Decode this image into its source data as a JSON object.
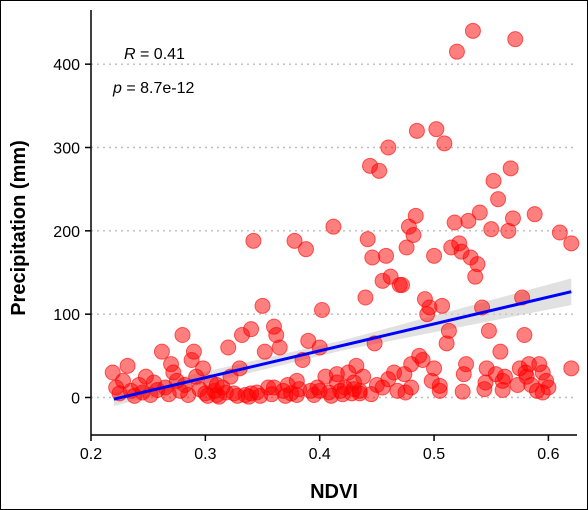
{
  "chart_data": {
    "type": "scatter",
    "title": "",
    "xlabel": "NDVI",
    "ylabel": "Precipitation (mm)",
    "xlim": [
      0.2,
      0.625
    ],
    "ylim": [
      -45,
      465
    ],
    "xticks": [
      "0.2",
      "0.3",
      "0.4",
      "0.5",
      "0.6"
    ],
    "xtick_values": [
      0.2,
      0.3,
      0.4,
      0.5,
      0.6
    ],
    "yticks": [
      "0",
      "100",
      "200",
      "300",
      "400"
    ],
    "ytick_values": [
      0,
      100,
      200,
      300,
      400
    ],
    "grid": "horizontal dotted at y ticks",
    "annotations": {
      "r_symbol": "R",
      "r_text": " = 0.41",
      "p_symbol": "p",
      "p_text": " = 8.7e-12"
    },
    "colors": {
      "points": "#ff0000",
      "regression_line": "#0000ff",
      "confidence_band": "#c8c8c8",
      "grid": "#bdbdbd"
    },
    "regression": {
      "x": [
        0.22,
        0.62
      ],
      "y": [
        -2,
        127
      ],
      "ci_halfwidth_start": 8,
      "ci_halfwidth_end": 16
    },
    "points": [
      [
        0.219,
        30
      ],
      [
        0.222,
        12
      ],
      [
        0.225,
        5
      ],
      [
        0.228,
        20
      ],
      [
        0.232,
        38
      ],
      [
        0.235,
        8
      ],
      [
        0.238,
        2
      ],
      [
        0.242,
        15
      ],
      [
        0.245,
        6
      ],
      [
        0.248,
        25
      ],
      [
        0.252,
        3
      ],
      [
        0.255,
        18
      ],
      [
        0.258,
        9
      ],
      [
        0.262,
        55
      ],
      [
        0.265,
        12
      ],
      [
        0.268,
        4
      ],
      [
        0.27,
        40
      ],
      [
        0.272,
        30
      ],
      [
        0.275,
        20
      ],
      [
        0.278,
        8
      ],
      [
        0.28,
        75
      ],
      [
        0.282,
        15
      ],
      [
        0.285,
        3
      ],
      [
        0.288,
        45
      ],
      [
        0.29,
        55
      ],
      [
        0.292,
        25
      ],
      [
        0.295,
        10
      ],
      [
        0.298,
        35
      ],
      [
        0.3,
        5
      ],
      [
        0.302,
        2
      ],
      [
        0.305,
        18
      ],
      [
        0.308,
        8
      ],
      [
        0.31,
        3
      ],
      [
        0.312,
        1
      ],
      [
        0.315,
        12
      ],
      [
        0.318,
        6
      ],
      [
        0.32,
        60
      ],
      [
        0.322,
        25
      ],
      [
        0.325,
        5
      ],
      [
        0.328,
        2
      ],
      [
        0.33,
        35
      ],
      [
        0.332,
        75
      ],
      [
        0.335,
        3
      ],
      [
        0.338,
        1
      ],
      [
        0.34,
        82
      ],
      [
        0.342,
        188
      ],
      [
        0.345,
        6
      ],
      [
        0.348,
        2
      ],
      [
        0.35,
        110
      ],
      [
        0.352,
        55
      ],
      [
        0.355,
        12
      ],
      [
        0.358,
        4
      ],
      [
        0.36,
        85
      ],
      [
        0.362,
        75
      ],
      [
        0.365,
        60
      ],
      [
        0.368,
        8
      ],
      [
        0.37,
        2
      ],
      [
        0.372,
        15
      ],
      [
        0.375,
        5
      ],
      [
        0.378,
        188
      ],
      [
        0.38,
        20
      ],
      [
        0.382,
        10
      ],
      [
        0.385,
        45
      ],
      [
        0.388,
        178
      ],
      [
        0.39,
        68
      ],
      [
        0.392,
        8
      ],
      [
        0.395,
        3
      ],
      [
        0.398,
        12
      ],
      [
        0.4,
        60
      ],
      [
        0.402,
        105
      ],
      [
        0.405,
        25
      ],
      [
        0.408,
        6
      ],
      [
        0.41,
        2
      ],
      [
        0.412,
        205
      ],
      [
        0.415,
        18
      ],
      [
        0.418,
        8
      ],
      [
        0.42,
        4
      ],
      [
        0.422,
        12
      ],
      [
        0.425,
        30
      ],
      [
        0.428,
        5
      ],
      [
        0.43,
        18
      ],
      [
        0.432,
        38
      ],
      [
        0.435,
        8
      ],
      [
        0.438,
        25
      ],
      [
        0.44,
        120
      ],
      [
        0.442,
        190
      ],
      [
        0.444,
        278
      ],
      [
        0.446,
        168
      ],
      [
        0.448,
        65
      ],
      [
        0.45,
        15
      ],
      [
        0.452,
        272
      ],
      [
        0.455,
        140
      ],
      [
        0.458,
        170
      ],
      [
        0.46,
        300
      ],
      [
        0.462,
        145
      ],
      [
        0.465,
        30
      ],
      [
        0.468,
        8
      ],
      [
        0.47,
        135
      ],
      [
        0.472,
        135
      ],
      [
        0.474,
        28
      ],
      [
        0.476,
        180
      ],
      [
        0.478,
        205
      ],
      [
        0.48,
        40
      ],
      [
        0.482,
        195
      ],
      [
        0.484,
        218
      ],
      [
        0.485,
        320
      ],
      [
        0.487,
        50
      ],
      [
        0.49,
        45
      ],
      [
        0.492,
        118
      ],
      [
        0.494,
        100
      ],
      [
        0.496,
        108
      ],
      [
        0.498,
        20
      ],
      [
        0.5,
        170
      ],
      [
        0.502,
        322
      ],
      [
        0.505,
        8
      ],
      [
        0.507,
        110
      ],
      [
        0.509,
        305
      ],
      [
        0.511,
        65
      ],
      [
        0.513,
        80
      ],
      [
        0.515,
        180
      ],
      [
        0.518,
        210
      ],
      [
        0.52,
        415
      ],
      [
        0.522,
        185
      ],
      [
        0.524,
        175
      ],
      [
        0.526,
        28
      ],
      [
        0.528,
        40
      ],
      [
        0.53,
        212
      ],
      [
        0.532,
        168
      ],
      [
        0.534,
        440
      ],
      [
        0.536,
        145
      ],
      [
        0.538,
        160
      ],
      [
        0.54,
        222
      ],
      [
        0.542,
        108
      ],
      [
        0.544,
        10
      ],
      [
        0.546,
        35
      ],
      [
        0.548,
        80
      ],
      [
        0.55,
        202
      ],
      [
        0.552,
        260
      ],
      [
        0.554,
        28
      ],
      [
        0.556,
        238
      ],
      [
        0.558,
        55
      ],
      [
        0.56,
        20
      ],
      [
        0.562,
        25
      ],
      [
        0.565,
        200
      ],
      [
        0.567,
        275
      ],
      [
        0.569,
        215
      ],
      [
        0.571,
        430
      ],
      [
        0.573,
        15
      ],
      [
        0.575,
        35
      ],
      [
        0.577,
        120
      ],
      [
        0.579,
        75
      ],
      [
        0.581,
        25
      ],
      [
        0.583,
        40
      ],
      [
        0.585,
        15
      ],
      [
        0.588,
        220
      ],
      [
        0.59,
        8
      ],
      [
        0.592,
        40
      ],
      [
        0.595,
        30
      ],
      [
        0.598,
        20
      ],
      [
        0.6,
        12
      ],
      [
        0.61,
        198
      ],
      [
        0.62,
        185
      ],
      [
        0.62,
        35
      ],
      [
        0.43,
        10
      ],
      [
        0.445,
        4
      ],
      [
        0.455,
        12
      ],
      [
        0.475,
        6
      ],
      [
        0.505,
        14
      ],
      [
        0.525,
        7
      ],
      [
        0.545,
        18
      ],
      [
        0.56,
        9
      ],
      [
        0.58,
        30
      ],
      [
        0.595,
        6
      ],
      [
        0.31,
        15
      ],
      [
        0.34,
        5
      ],
      [
        0.36,
        12
      ],
      [
        0.38,
        3
      ],
      [
        0.4,
        8
      ],
      [
        0.415,
        28
      ],
      [
        0.435,
        5
      ],
      [
        0.46,
        22
      ],
      [
        0.48,
        12
      ],
      [
        0.5,
        35
      ]
    ]
  }
}
